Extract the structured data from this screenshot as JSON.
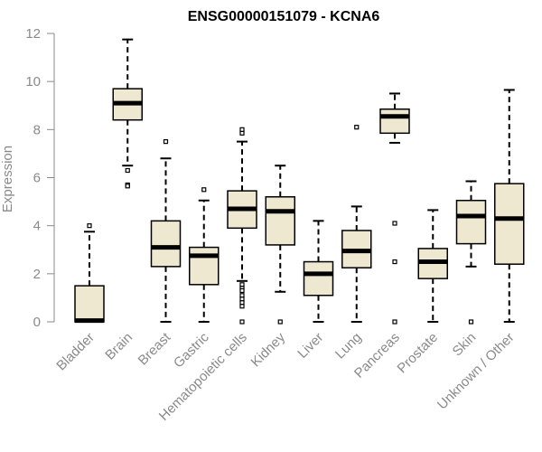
{
  "chart_data": {
    "type": "boxplot",
    "title": "ENSG00000151079 - KCNA6",
    "xlabel": "",
    "ylabel": "Expression",
    "ylim": [
      0,
      12
    ],
    "yticks": [
      0,
      2,
      4,
      6,
      8,
      10,
      12
    ],
    "box_fill": "#efe8d0",
    "series": [
      {
        "name": "Bladder",
        "whisker_low": 0,
        "q1": 0,
        "median": 0.05,
        "q3": 1.5,
        "whisker_high": 3.75,
        "outliers": [
          4.0
        ]
      },
      {
        "name": "Brain",
        "whisker_low": 6.5,
        "q1": 8.4,
        "median": 9.1,
        "q3": 9.7,
        "whisker_high": 11.75,
        "outliers": [
          6.3,
          5.7,
          5.65
        ]
      },
      {
        "name": "Breast",
        "whisker_low": 0,
        "q1": 2.3,
        "median": 3.1,
        "q3": 4.2,
        "whisker_high": 6.8,
        "outliers": [
          7.5
        ]
      },
      {
        "name": "Gastric",
        "whisker_low": 0,
        "q1": 1.55,
        "median": 2.75,
        "q3": 3.1,
        "whisker_high": 5.05,
        "outliers": [
          5.5
        ]
      },
      {
        "name": "Hematopoietic cells",
        "whisker_low": 1.7,
        "q1": 3.9,
        "median": 4.7,
        "q3": 5.45,
        "whisker_high": 7.5,
        "outliers": [
          7.85,
          8.0,
          1.55,
          1.4,
          1.3,
          1.1,
          0.95,
          0.8,
          0.65,
          0
        ]
      },
      {
        "name": "Kidney",
        "whisker_low": 1.25,
        "q1": 3.2,
        "median": 4.6,
        "q3": 5.2,
        "whisker_high": 6.5,
        "outliers": [
          0
        ]
      },
      {
        "name": "Liver",
        "whisker_low": 0,
        "q1": 1.1,
        "median": 2.0,
        "q3": 2.5,
        "whisker_high": 4.2,
        "outliers": []
      },
      {
        "name": "Lung",
        "whisker_low": 0,
        "q1": 2.25,
        "median": 2.95,
        "q3": 3.8,
        "whisker_high": 4.8,
        "outliers": [
          8.1
        ]
      },
      {
        "name": "Pancreas",
        "whisker_low": 7.45,
        "q1": 7.85,
        "median": 8.55,
        "q3": 8.85,
        "whisker_high": 9.5,
        "outliers": [
          4.1,
          2.5,
          0
        ]
      },
      {
        "name": "Prostate",
        "whisker_low": 0,
        "q1": 1.8,
        "median": 2.5,
        "q3": 3.05,
        "whisker_high": 4.65,
        "outliers": []
      },
      {
        "name": "Skin",
        "whisker_low": 2.3,
        "q1": 3.25,
        "median": 4.4,
        "q3": 5.05,
        "whisker_high": 5.85,
        "outliers": [
          0
        ]
      },
      {
        "name": "Unknown / Other",
        "whisker_low": 0,
        "q1": 2.4,
        "median": 4.3,
        "q3": 5.75,
        "whisker_high": 9.65,
        "outliers": []
      }
    ]
  }
}
